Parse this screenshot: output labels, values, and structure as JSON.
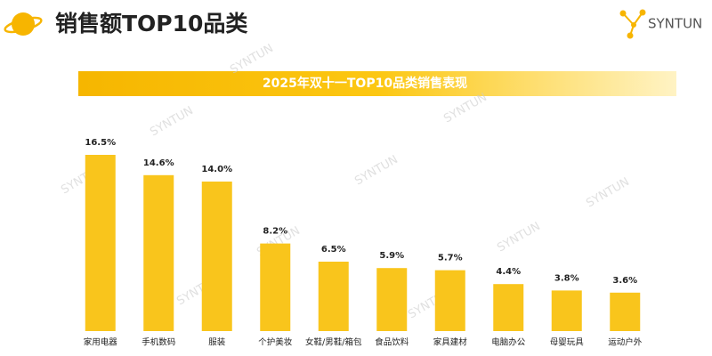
{
  "header": {
    "title": "销售额TOP10品类",
    "logo": "SYNTUN",
    "watermark": "SYNTUN"
  },
  "chart_data": {
    "type": "bar",
    "title": "2025年双十一TOP10品类销售表现",
    "categories": [
      "家用电器",
      "手机数码",
      "服装",
      "个护美妆",
      "女鞋/男鞋/箱包",
      "食品饮料",
      "家具建材",
      "电脑办公",
      "母婴玩具",
      "运动户外"
    ],
    "values": [
      16.5,
      14.6,
      14.0,
      8.2,
      6.5,
      5.9,
      5.7,
      4.4,
      3.8,
      3.6
    ],
    "value_labels": [
      "16.5%",
      "14.6%",
      "14.0%",
      "8.2%",
      "6.5%",
      "5.9%",
      "5.7%",
      "4.4%",
      "3.8%",
      "3.6%"
    ],
    "color": "#f9c51c"
  }
}
